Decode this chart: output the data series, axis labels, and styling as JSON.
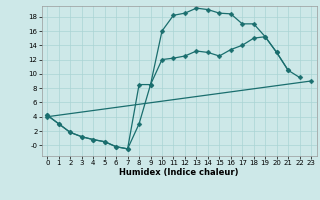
{
  "xlabel": "Humidex (Indice chaleur)",
  "background_color": "#cde8e8",
  "line_color": "#1a6e6e",
  "xlim": [
    -0.5,
    23.5
  ],
  "ylim": [
    -1.5,
    19.5
  ],
  "xticks": [
    0,
    1,
    2,
    3,
    4,
    5,
    6,
    7,
    8,
    9,
    10,
    11,
    12,
    13,
    14,
    15,
    16,
    17,
    18,
    19,
    20,
    21,
    22,
    23
  ],
  "yticks": [
    0,
    2,
    4,
    6,
    8,
    10,
    12,
    14,
    16,
    18
  ],
  "ytick_labels": [
    "-0",
    "2",
    "4",
    "6",
    "8",
    "10",
    "12",
    "14",
    "16",
    "18"
  ],
  "curve1_x": [
    0,
    1,
    2,
    3,
    4,
    5,
    6,
    7,
    8,
    9,
    10,
    11,
    12,
    13,
    14,
    15,
    16,
    17,
    18,
    19,
    20,
    21
  ],
  "curve1_y": [
    4.2,
    3.0,
    1.8,
    1.2,
    0.8,
    0.5,
    -0.2,
    -0.5,
    8.5,
    8.5,
    16.0,
    18.2,
    18.5,
    19.2,
    19.0,
    18.5,
    18.4,
    17.0,
    17.0,
    15.2,
    13.0,
    10.5
  ],
  "curve2_x": [
    0,
    1,
    2,
    3,
    4,
    5,
    6,
    7,
    8,
    9,
    10,
    11,
    12,
    13,
    14,
    15,
    16,
    17,
    18,
    19,
    20,
    21,
    22
  ],
  "curve2_y": [
    4.2,
    3.0,
    1.8,
    1.2,
    0.8,
    0.5,
    -0.2,
    -0.5,
    3.0,
    8.5,
    12.0,
    12.2,
    12.5,
    13.2,
    13.0,
    12.5,
    13.4,
    14.0,
    15.0,
    15.2,
    13.0,
    10.5,
    9.5
  ],
  "curve3_x": [
    0,
    23
  ],
  "curve3_y": [
    4.0,
    9.0
  ],
  "grid_color": "#aad4d4",
  "marker": "D",
  "markersize": 2.5,
  "linewidth": 0.9,
  "tick_fontsize": 5,
  "xlabel_fontsize": 6
}
